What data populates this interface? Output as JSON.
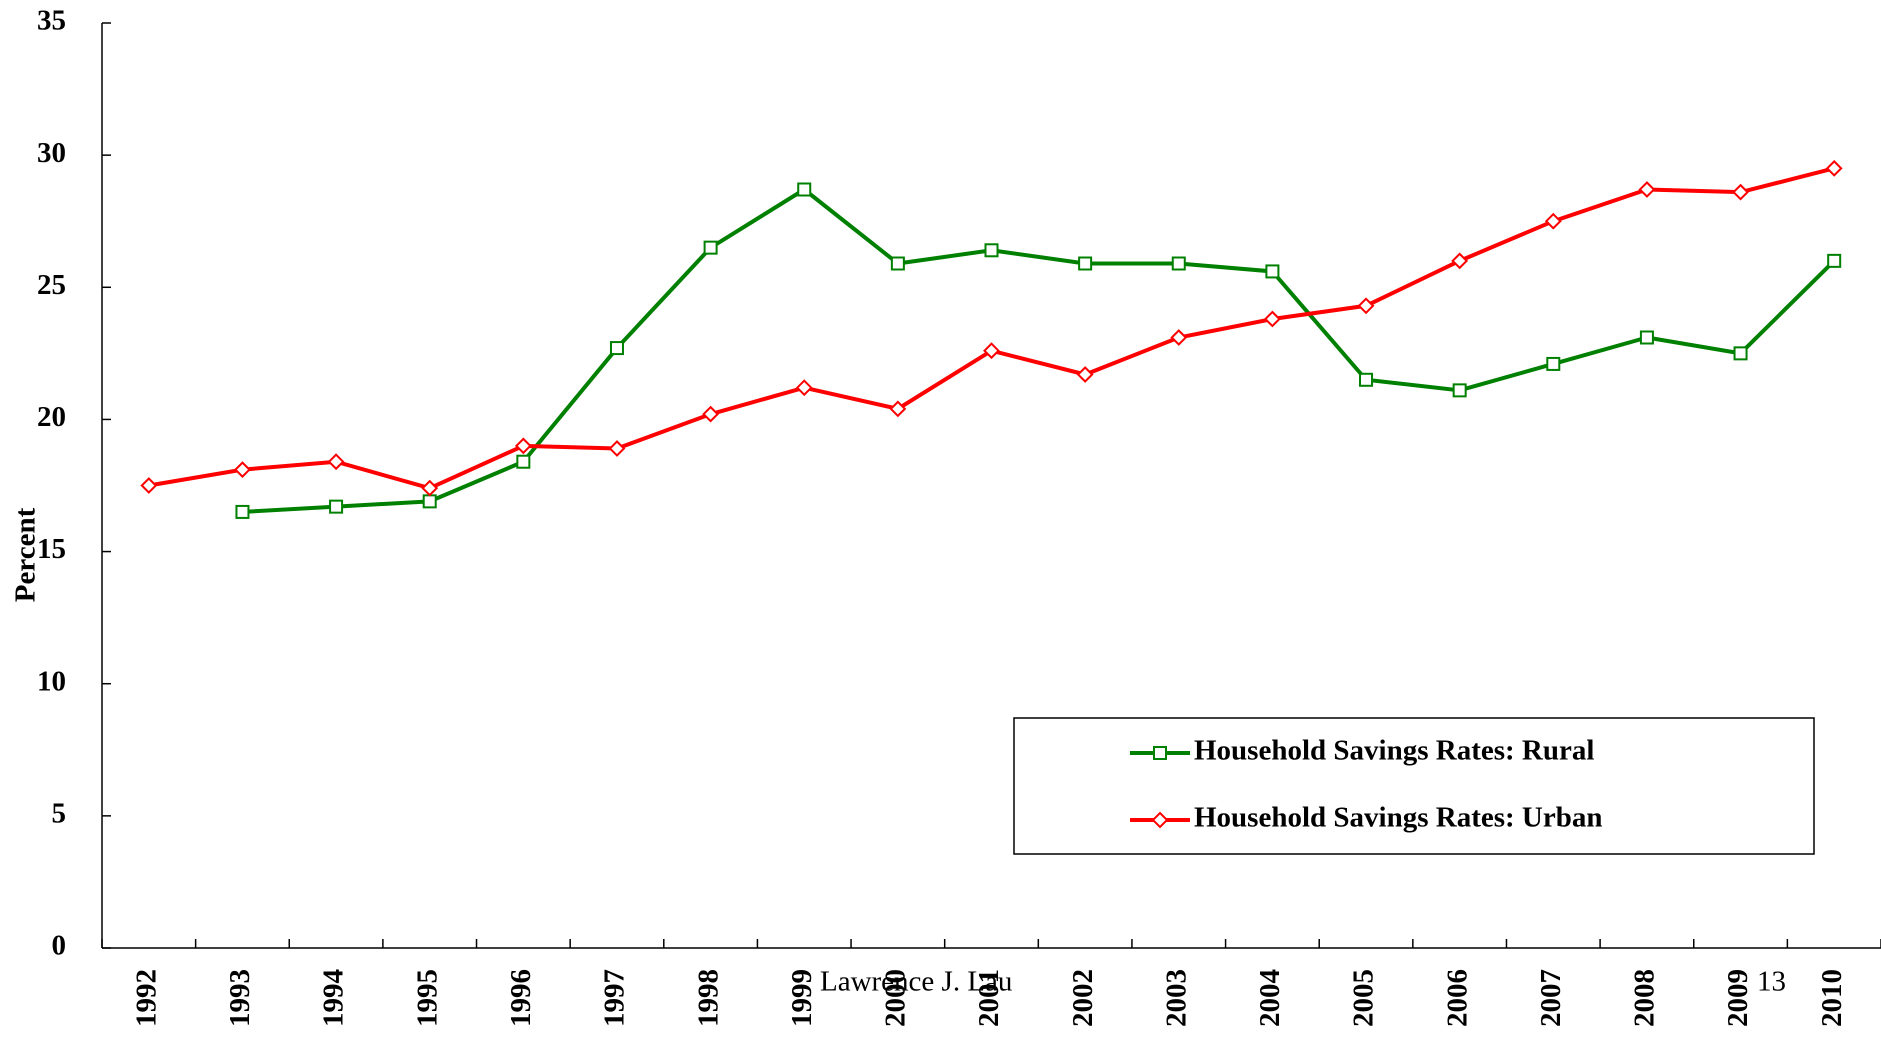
{
  "chart_data": {
    "type": "line",
    "y_label": "Percent",
    "categories": [
      "1992",
      "1993",
      "1994",
      "1995",
      "1996",
      "1997",
      "1998",
      "1999",
      "2000",
      "2001",
      "2002",
      "2003",
      "2004",
      "2005",
      "2006",
      "2007",
      "2008",
      "2009",
      "2010"
    ],
    "series": [
      {
        "name": "Household Savings Rates: Rural",
        "color": "#008000",
        "marker": "square",
        "values": [
          null,
          16.5,
          16.7,
          16.9,
          18.4,
          22.7,
          26.5,
          28.7,
          25.9,
          26.4,
          25.9,
          25.9,
          25.6,
          21.5,
          21.1,
          22.1,
          23.1,
          22.5,
          26.0
        ]
      },
      {
        "name": "Household Savings Rates: Urban",
        "color": "#ff0000",
        "marker": "diamond",
        "values": [
          17.5,
          18.1,
          18.4,
          17.4,
          19.0,
          18.9,
          20.2,
          21.2,
          20.4,
          22.6,
          21.7,
          23.1,
          23.8,
          24.3,
          26.0,
          27.5,
          28.7,
          28.6,
          29.5
        ]
      }
    ],
    "ylim": [
      0,
      35
    ],
    "yticks": [
      0,
      5,
      10,
      15,
      20,
      25,
      30,
      35
    ],
    "footer_left": "Lawrence J. Lau",
    "footer_right": "13"
  }
}
